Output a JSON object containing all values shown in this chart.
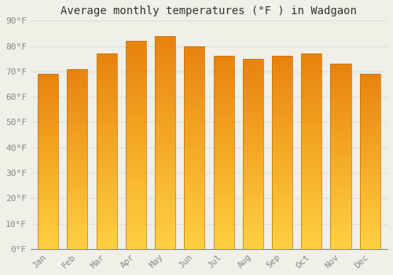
{
  "title": "Average monthly temperatures (°F ) in Wadgaon",
  "months": [
    "Jan",
    "Feb",
    "Mar",
    "Apr",
    "May",
    "Jun",
    "Jul",
    "Aug",
    "Sep",
    "Oct",
    "Nov",
    "Dec"
  ],
  "values": [
    69,
    71,
    77,
    82,
    84,
    80,
    76,
    75,
    76,
    77,
    73,
    69
  ],
  "bar_color_top": "#E8820C",
  "bar_color_bottom": "#FFD040",
  "background_color": "#F0EFE8",
  "grid_color": "#DDDDDD",
  "ylim": [
    0,
    90
  ],
  "yticks": [
    0,
    10,
    20,
    30,
    40,
    50,
    60,
    70,
    80,
    90
  ],
  "title_fontsize": 10,
  "tick_fontsize": 8,
  "bar_width": 0.7,
  "bar_edge_color": "#C07000",
  "bar_edge_width": 0.5
}
